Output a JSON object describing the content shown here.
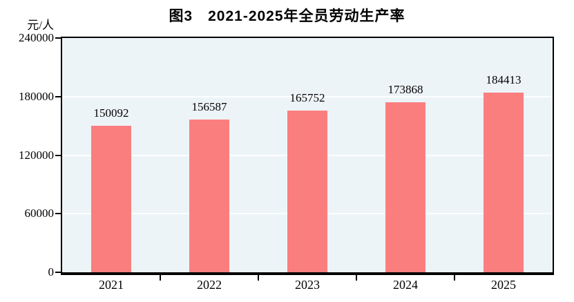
{
  "figure": {
    "title": "图3　2021-2025年全员劳动生产率",
    "unit_label": "元/人"
  },
  "chart_data": {
    "type": "bar",
    "title": "图3　2021-2025年全员劳动生产率",
    "ylabel": "元/人",
    "xlabel": "",
    "categories": [
      "2021",
      "2022",
      "2023",
      "2024",
      "2025"
    ],
    "values": [
      150092,
      156587,
      165752,
      173868,
      184413
    ],
    "data_labels": [
      "150092",
      "156587",
      "165752",
      "173868",
      "184413"
    ],
    "ylim": [
      0,
      240000
    ],
    "yticks": [
      0,
      60000,
      120000,
      180000,
      240000
    ],
    "grid": "horizontal",
    "legend_position": "none",
    "colors": {
      "bar": "#fb7e7f",
      "plot_background": "#edf4f8",
      "gridline": "#fcffff",
      "axis": "#000000",
      "text": "#000000"
    }
  }
}
